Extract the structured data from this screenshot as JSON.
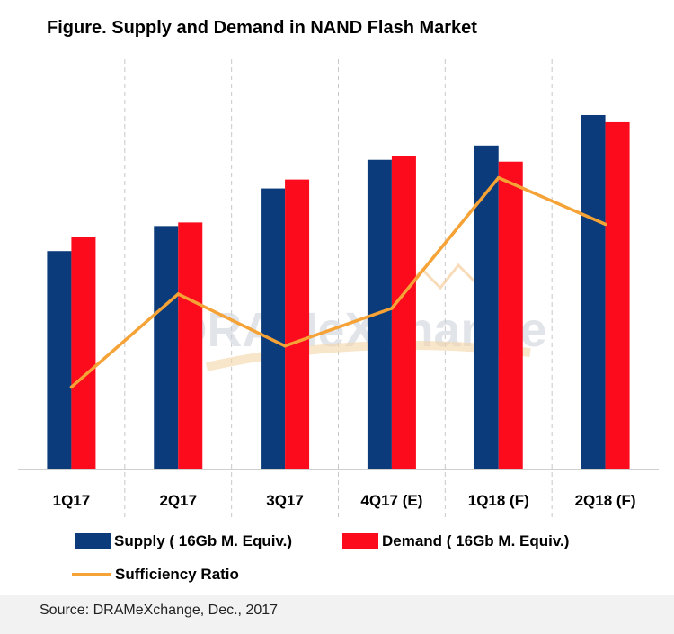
{
  "title": "Figure. Supply and Demand in NAND Flash Market",
  "source": "Source: DRAMeXchange, Dec., 2017",
  "watermark": "DRAMeXchange",
  "colors": {
    "supply": "#0b3b7a",
    "demand": "#fb0b1c",
    "ratio": "#f5a236",
    "gridline": "#c8c8c8",
    "axis": "#bfbfbf"
  },
  "legend": {
    "supply": "Supply ( 16Gb M. Equiv.)",
    "demand": "Demand ( 16Gb M. Equiv.)",
    "ratio": "Sufficiency Ratio"
  },
  "chart_data": {
    "type": "bar",
    "title": "Figure. Supply and Demand in NAND Flash Market",
    "categories": [
      "1Q17",
      "2Q17",
      "3Q17",
      "4Q17 (E)",
      "1Q18 (F)",
      "2Q18 (F)"
    ],
    "series": [
      {
        "name": "Supply ( 16Gb M. Equiv.)",
        "type": "bar",
        "values": [
          61,
          68,
          78.5,
          86.5,
          90.5,
          99
        ]
      },
      {
        "name": "Demand ( 16Gb M. Equiv.)",
        "type": "bar",
        "values": [
          65,
          69,
          81,
          87.5,
          86,
          97
        ]
      },
      {
        "name": "Sufficiency Ratio",
        "type": "line",
        "values": [
          23,
          49,
          34.5,
          45,
          81.5,
          68.5
        ]
      }
    ],
    "ylim": [
      0,
      100
    ],
    "y_axis_shown": false,
    "grid": "vertical dashed separators between categories",
    "legend_position": "bottom"
  }
}
